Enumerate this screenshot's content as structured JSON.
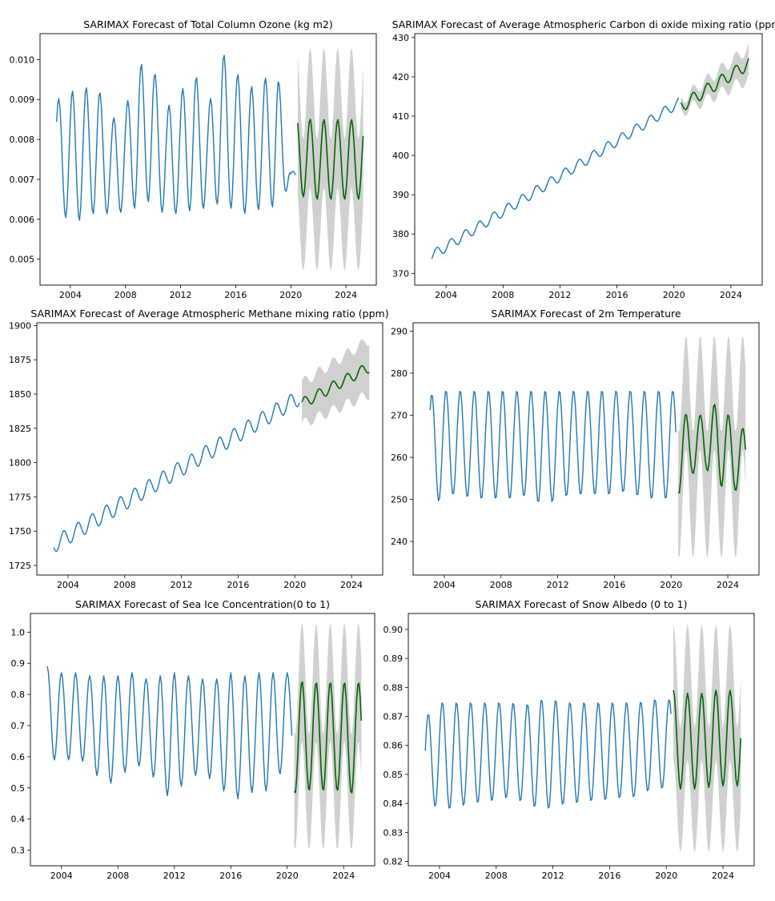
{
  "figure": {
    "colors": {
      "observed": "#1f77b4",
      "forecast": "#006400",
      "confidence": "#c8c8c8",
      "axes": "#000000"
    }
  },
  "chart_data": [
    {
      "type": "line",
      "title": "SARIMAX Forecast of Total Column Ozone (kg m2)",
      "xlabel": "",
      "ylabel": "",
      "xlim": [
        2001.8,
        2026.2
      ],
      "ylim": [
        0.00435,
        0.01065
      ],
      "xticks": [
        2004,
        2008,
        2012,
        2016,
        2020,
        2024
      ],
      "x_tick_labels": [
        "2004",
        "2008",
        "2012",
        "2016",
        "2020",
        "2024"
      ],
      "yticks": [
        0.005,
        0.006,
        0.007,
        0.008,
        0.009,
        0.01
      ],
      "y_tick_labels": [
        "0.005",
        "0.006",
        "0.007",
        "0.008",
        "0.009",
        "0.010"
      ],
      "observed": {
        "start": 2003.0,
        "end": 2020.4,
        "peaks": [
          0.009,
          0.0092,
          0.0093,
          0.0093,
          0.0085,
          0.0088,
          0.0099,
          0.0098,
          0.0088,
          0.0092,
          0.0097,
          0.0088,
          0.0102,
          0.0097,
          0.0093,
          0.0095,
          0.0098,
          0.0072
        ],
        "troughs": [
          0.0063,
          0.0059,
          0.006,
          0.0062,
          0.0061,
          0.0062,
          0.0063,
          0.0065,
          0.006,
          0.0062,
          0.0062,
          0.0063,
          0.0064,
          0.0062,
          0.0061,
          0.0063,
          0.0063,
          0.0069
        ],
        "phase": 0.15
      },
      "forecast": {
        "start": 2020.5,
        "end": 2025.3,
        "peaks": [
          0.0086,
          0.0085,
          0.0085,
          0.0085,
          0.0085
        ],
        "troughs": [
          0.0066,
          0.0065,
          0.0065,
          0.0065,
          0.0065
        ],
        "phase": 0.9,
        "ci_lower_peak": 0.0068,
        "ci_upper_peak": 0.0103,
        "ci_lower_trough": 0.0047,
        "ci_upper_trough": 0.008
      }
    },
    {
      "type": "line",
      "title": "SARIMAX Forecast of Average Atmospheric Carbon di oxide mixing ratio (ppm)",
      "xlabel": "",
      "ylabel": "",
      "xlim": [
        2001.8,
        2026.2
      ],
      "ylim": [
        367,
        431
      ],
      "xticks": [
        2004,
        2008,
        2012,
        2016,
        2020,
        2024
      ],
      "x_tick_labels": [
        "2004",
        "2008",
        "2012",
        "2016",
        "2020",
        "2024"
      ],
      "yticks": [
        370,
        380,
        390,
        400,
        410,
        420,
        430
      ],
      "y_tick_labels": [
        "370",
        "380",
        "390",
        "400",
        "410",
        "420",
        "430"
      ],
      "observed": {
        "start": 2003.0,
        "end": 2020.4,
        "trend_start": 374.5,
        "trend_end": 413.5,
        "amplitude": 1.3,
        "phase": 0.35
      },
      "forecast": {
        "start": 2020.5,
        "end": 2025.3,
        "trend_start": 412.5,
        "trend_end": 423.5,
        "amplitude": 1.6,
        "phase": 0.35,
        "ci_halfwidth_start": 1.5,
        "ci_halfwidth_end": 4.0
      }
    },
    {
      "type": "line",
      "title": "SARIMAX Forecast of Average Atmospheric Methane mixing ratio (ppm)",
      "xlabel": "",
      "ylabel": "",
      "xlim": [
        2001.8,
        2026.2
      ],
      "ylim": [
        1718,
        1902
      ],
      "xticks": [
        2004,
        2008,
        2012,
        2016,
        2020,
        2024
      ],
      "x_tick_labels": [
        "2004",
        "2008",
        "2012",
        "2016",
        "2020",
        "2024"
      ],
      "yticks": [
        1725,
        1750,
        1775,
        1800,
        1825,
        1850,
        1875,
        1900
      ],
      "y_tick_labels": [
        "1725",
        "1750",
        "1775",
        "1800",
        "1825",
        "1850",
        "1875",
        "1900"
      ],
      "observed": {
        "start": 2003.0,
        "end": 2020.4,
        "trend_start": 1740,
        "trend_end": 1848,
        "amplitude": 6,
        "phase": 0.7
      },
      "forecast": {
        "start": 2020.5,
        "end": 2025.3,
        "trend_start": 1843,
        "trend_end": 1870,
        "amplitude": 4,
        "phase": 0.7,
        "ci_halfwidth_start": 15,
        "ci_halfwidth_end": 20
      }
    },
    {
      "type": "line",
      "title": "SARIMAX Forecast of 2m Temperature",
      "xlabel": "",
      "ylabel": "",
      "xlim": [
        2001.8,
        2026.2
      ],
      "ylim": [
        232,
        292
      ],
      "xticks": [
        2004,
        2008,
        2012,
        2016,
        2020,
        2024
      ],
      "x_tick_labels": [
        "2004",
        "2008",
        "2012",
        "2016",
        "2020",
        "2024"
      ],
      "yticks": [
        240,
        250,
        260,
        270,
        280,
        290
      ],
      "y_tick_labels": [
        "240",
        "250",
        "260",
        "270",
        "280",
        "290"
      ],
      "observed": {
        "start": 2003.0,
        "end": 2020.4,
        "peaks": [
          275,
          276,
          276,
          276,
          276,
          276,
          276,
          276,
          276,
          276,
          276,
          276,
          276,
          276,
          276,
          276,
          276,
          276
        ],
        "troughs": [
          247,
          251,
          251,
          250,
          250,
          250,
          250,
          251,
          248,
          250,
          251,
          251,
          251,
          251,
          252,
          250,
          250,
          250
        ],
        "phase": 0.12
      },
      "forecast": {
        "start": 2020.5,
        "end": 2025.3,
        "peaks": [
          272,
          269,
          271,
          274,
          267
        ],
        "troughs": [
          251,
          256,
          257,
          253,
          252
        ],
        "phase": 0.55,
        "ci_lower_peak": 262,
        "ci_upper_peak": 289,
        "ci_lower_trough": 236,
        "ci_upper_trough": 266
      }
    },
    {
      "type": "line",
      "title": "SARIMAX Forecast of Sea Ice Concentration(0 to 1)",
      "xlabel": "",
      "ylabel": "",
      "xlim": [
        2001.8,
        2026.2
      ],
      "ylim": [
        0.25,
        1.06
      ],
      "xticks": [
        2004,
        2008,
        2012,
        2016,
        2020,
        2024
      ],
      "x_tick_labels": [
        "2004",
        "2008",
        "2012",
        "2016",
        "2020",
        "2024"
      ],
      "yticks": [
        0.3,
        0.4,
        0.5,
        0.6,
        0.7,
        0.8,
        0.9,
        1.0
      ],
      "y_tick_labels": [
        "0.3",
        "0.4",
        "0.5",
        "0.6",
        "0.7",
        "0.8",
        "0.9",
        "1.0"
      ],
      "observed": {
        "start": 2003.0,
        "end": 2020.4,
        "peaks": [
          0.89,
          0.87,
          0.87,
          0.86,
          0.86,
          0.86,
          0.87,
          0.85,
          0.86,
          0.87,
          0.86,
          0.85,
          0.85,
          0.87,
          0.86,
          0.87,
          0.87,
          0.87
        ],
        "troughs": [
          0.58,
          0.6,
          0.58,
          0.59,
          0.49,
          0.54,
          0.56,
          0.58,
          0.49,
          0.46,
          0.55,
          0.53,
          0.53,
          0.45,
          0.48,
          0.49,
          0.49,
          0.6
        ],
        "phase": 0.0
      },
      "forecast": {
        "start": 2020.5,
        "end": 2025.3,
        "peaks": [
          0.85,
          0.84,
          0.84,
          0.84,
          0.84
        ],
        "troughs": [
          0.48,
          0.49,
          0.49,
          0.49,
          0.48
        ],
        "phase": 0.55,
        "ci_lower_peak": 0.65,
        "ci_upper_peak": 1.03,
        "ci_lower_trough": 0.3,
        "ci_upper_trough": 0.67
      }
    },
    {
      "type": "line",
      "title": "SARIMAX Forecast of  Snow Albedo (0 to 1)",
      "xlabel": "",
      "ylabel": "",
      "xlim": [
        2001.8,
        2026.2
      ],
      "ylim": [
        0.8185,
        0.9055
      ],
      "xticks": [
        2004,
        2008,
        2012,
        2016,
        2020,
        2024
      ],
      "x_tick_labels": [
        "2004",
        "2008",
        "2012",
        "2016",
        "2020",
        "2024"
      ],
      "yticks": [
        0.82,
        0.83,
        0.84,
        0.85,
        0.86,
        0.87,
        0.88,
        0.89,
        0.9
      ],
      "y_tick_labels": [
        "0.82",
        "0.83",
        "0.84",
        "0.85",
        "0.86",
        "0.87",
        "0.88",
        "0.89",
        "0.90"
      ],
      "observed": {
        "start": 2003.0,
        "end": 2020.4,
        "peaks": [
          0.87,
          0.875,
          0.875,
          0.875,
          0.875,
          0.875,
          0.875,
          0.874,
          0.876,
          0.876,
          0.875,
          0.875,
          0.875,
          0.875,
          0.875,
          0.875,
          0.876,
          0.876
        ],
        "troughs": [
          0.836,
          0.84,
          0.837,
          0.84,
          0.84,
          0.841,
          0.842,
          0.84,
          0.838,
          0.838,
          0.84,
          0.84,
          0.841,
          0.841,
          0.842,
          0.842,
          0.845,
          0.845
        ],
        "phase": 0.2
      },
      "forecast": {
        "start": 2020.5,
        "end": 2025.3,
        "peaks": [
          0.879,
          0.878,
          0.878,
          0.879,
          0.879
        ],
        "troughs": [
          0.845,
          0.845,
          0.845,
          0.846,
          0.846
        ],
        "phase": 0.0,
        "ci_lower_peak": 0.855,
        "ci_upper_peak": 0.902,
        "ci_lower_trough": 0.823,
        "ci_upper_trough": 0.866
      }
    }
  ]
}
